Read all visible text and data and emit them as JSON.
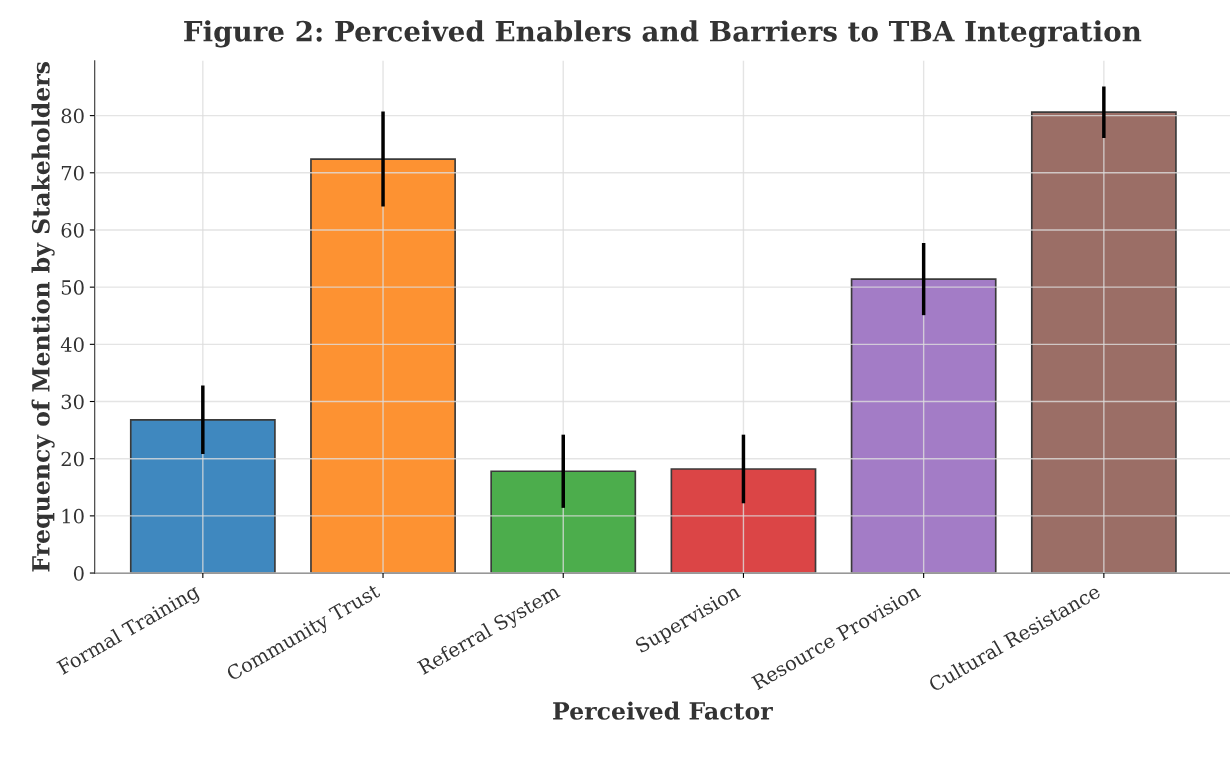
{
  "chart_data": {
    "type": "bar",
    "title": "Figure 2: Perceived Enablers and Barriers to TBA Integration",
    "xlabel": "Perceived Factor",
    "ylabel": "Frequency of Mention by Stakeholders",
    "categories": [
      "Formal Training",
      "Community Trust",
      "Referral System",
      "Supervision",
      "Resource Provision",
      "Cultural Resistance"
    ],
    "values": [
      26.8,
      72.4,
      17.8,
      18.2,
      51.4,
      80.6
    ],
    "errors": [
      6,
      8.3,
      6.4,
      6,
      6.3,
      4.5
    ],
    "colors": [
      "#3f88bf",
      "#fd9232",
      "#4cad4c",
      "#db4546",
      "#a37cc6",
      "#9b6e66"
    ],
    "ylim": [
      0,
      89.6
    ],
    "yticks": [
      0,
      10,
      20,
      30,
      40,
      50,
      60,
      70,
      80
    ],
    "grid": true
  }
}
